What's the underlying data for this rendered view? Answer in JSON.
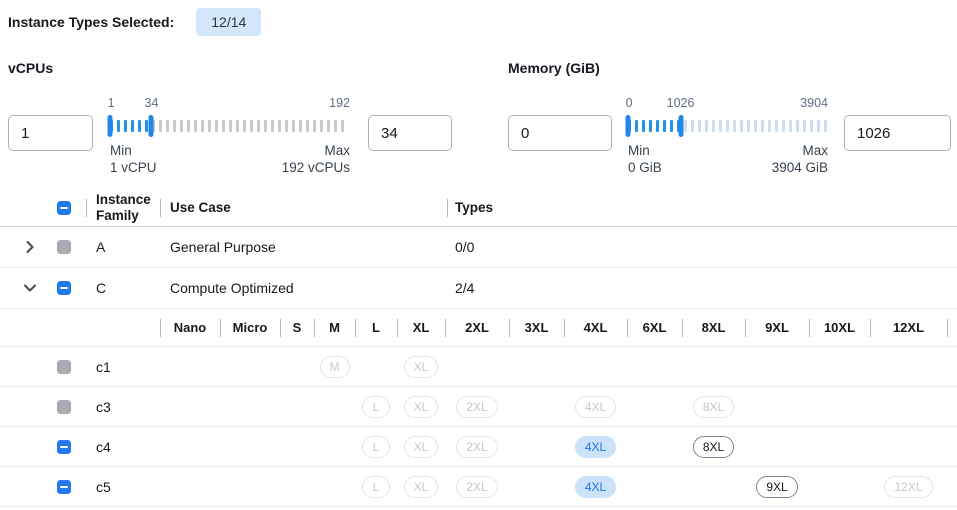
{
  "header": {
    "label": "Instance Types Selected:",
    "badge": "12/14"
  },
  "colors": {
    "accent": "#2478f0",
    "slider_handle": "#1f87e8",
    "tick_active": "#2492e8",
    "tick_inactive_vcpus": "#c8c9cd",
    "tick_inactive_memory": "#cfdcf0",
    "badge_bg": "#d3e7fb",
    "pill_selected_bg": "#cbe3fa",
    "pill_selected_text": "#1f74e8"
  },
  "filters": [
    {
      "id": "vcpus",
      "label": "vCPUs",
      "min": 1,
      "max": 192,
      "low": 1,
      "high": 34,
      "low_value": "1",
      "high_value": "34",
      "scale_low": "1",
      "scale_high": "34",
      "scale_max": "192",
      "min_caption": "Min",
      "max_caption": "Max",
      "min_detail": "1 vCPU",
      "max_detail": "192 vCPUs"
    },
    {
      "id": "memory",
      "label": "Memory (GiB)",
      "min": 0,
      "max": 3904,
      "low": 0,
      "high": 1026,
      "low_value": "0",
      "high_value": "1026",
      "scale_low": "0",
      "scale_high": "1026",
      "scale_max": "3904",
      "min_caption": "Min",
      "max_caption": "Max",
      "min_detail": "0 GiB",
      "max_detail": "3904 GiB"
    }
  ],
  "table": {
    "header": {
      "family": "Instance Family",
      "use_case": "Use Case",
      "types": "Types",
      "select_all_state": "indeterminate"
    },
    "size_columns": [
      "Nano",
      "Micro",
      "S",
      "M",
      "L",
      "XL",
      "2XL",
      "3XL",
      "4XL",
      "6XL",
      "8XL",
      "9XL",
      "10XL",
      "12XL"
    ],
    "groups": [
      {
        "family": "A",
        "use_case": "General Purpose",
        "types": "0/0",
        "expanded": false,
        "checkbox": "disabled",
        "children": []
      },
      {
        "family": "C",
        "use_case": "Compute Optimized",
        "types": "2/4",
        "expanded": true,
        "checkbox": "indeterminate",
        "children": [
          {
            "name": "c1",
            "checkbox": "disabled",
            "sizes": {
              "M": "disabled",
              "XL": "disabled"
            }
          },
          {
            "name": "c3",
            "checkbox": "disabled",
            "sizes": {
              "L": "disabled",
              "XL": "disabled",
              "2XL": "disabled",
              "4XL": "disabled",
              "8XL": "disabled"
            }
          },
          {
            "name": "c4",
            "checkbox": "indeterminate",
            "sizes": {
              "L": "disabled",
              "XL": "disabled",
              "2XL": "disabled",
              "4XL": "selected",
              "8XL": "available"
            }
          },
          {
            "name": "c5",
            "checkbox": "indeterminate",
            "sizes": {
              "L": "disabled",
              "XL": "disabled",
              "2XL": "disabled",
              "4XL": "selected",
              "9XL": "available",
              "12XL": "disabled"
            }
          }
        ]
      }
    ]
  }
}
